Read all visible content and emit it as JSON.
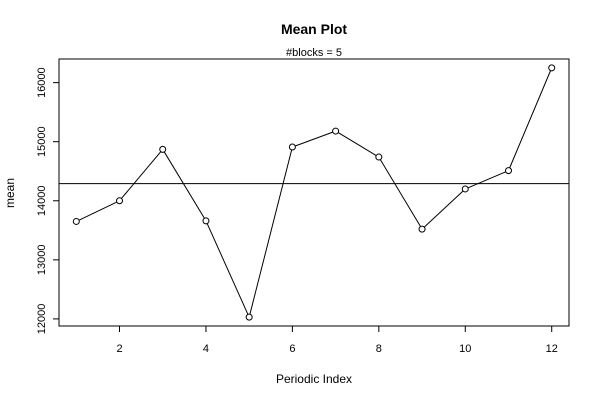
{
  "chart_data": {
    "type": "line",
    "title": "Mean Plot",
    "subtitle": "#blocks =  5",
    "xlabel": "Periodic Index",
    "ylabel": "mean",
    "x": [
      1,
      2,
      3,
      4,
      5,
      6,
      7,
      8,
      9,
      10,
      11,
      12
    ],
    "series": [
      {
        "values": [
          13650,
          14000,
          14870,
          13660,
          12030,
          14910,
          15180,
          14740,
          13520,
          14200,
          14510,
          16250
        ]
      }
    ],
    "reference_line": 14290,
    "xlim": [
      0.6,
      12.4
    ],
    "ylim": [
      11880,
      16400
    ],
    "x_ticks": [
      "2",
      "4",
      "6",
      "8",
      "10",
      "12"
    ],
    "y_ticks": [
      "12000",
      "13000",
      "14000",
      "15000",
      "16000"
    ],
    "grid": false,
    "line_color": "#000000",
    "marker": "open-circle"
  }
}
